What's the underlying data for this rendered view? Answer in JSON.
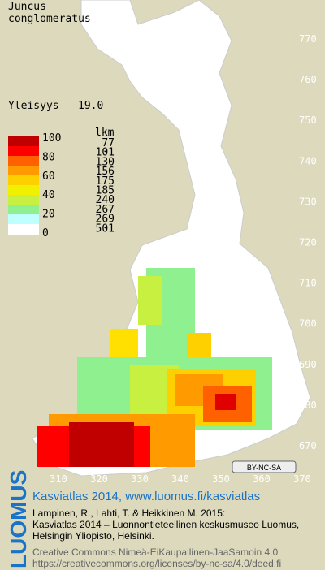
{
  "header": {
    "species_line1": "Juncus",
    "species_line2": "conglomeratus",
    "frequency_label": "Yleisyys",
    "frequency_value": "19.0"
  },
  "legend": {
    "scale_labels": [
      "100",
      "80",
      "60",
      "40",
      "20",
      "0"
    ],
    "count_header": "lkm",
    "counts": [
      "77",
      "101",
      "130",
      "156",
      "175",
      "185",
      "240",
      "267",
      "269",
      "501"
    ]
  },
  "grid_labels": {
    "north": [
      "770",
      "760",
      "750",
      "740",
      "730",
      "720",
      "710",
      "700",
      "690",
      "680",
      "670"
    ],
    "east": [
      "310",
      "320",
      "330",
      "340",
      "350",
      "360",
      "370"
    ]
  },
  "license_badge": "BY-NC-SA",
  "footer": {
    "logo": "LUOMUS",
    "title": "Kasviatlas 2014, www.luomus.fi/kasviatlas",
    "citation": [
      "Lampinen, R., Lahti, T. & Heikkinen M. 2015:",
      "Kasviatlas 2014 – Luonnontieteellinen keskusmuseo Luomus,",
      "Helsingin Yliopisto, Helsinki."
    ],
    "license": [
      "Creative Commons Nimeä-EiKaupallinen-JaaSamoin 4.0",
      "https://creativecommons.org/licenses/by-nc-sa/4.0/deed.fi"
    ]
  }
}
